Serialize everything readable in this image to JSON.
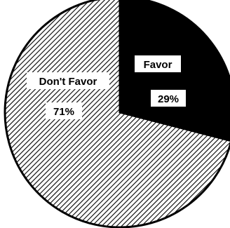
{
  "chart_data": {
    "type": "pie",
    "start_angle_deg": 0,
    "direction": "clockwise",
    "slices": [
      {
        "label": "Favor",
        "value": 29,
        "value_label": "29%",
        "fill": "#000000",
        "pattern": "solid"
      },
      {
        "label": "Don't Favor",
        "value": 71,
        "value_label": "71%",
        "fill": "#000000",
        "pattern": "diagonal-hatch"
      }
    ],
    "legend": "none"
  }
}
